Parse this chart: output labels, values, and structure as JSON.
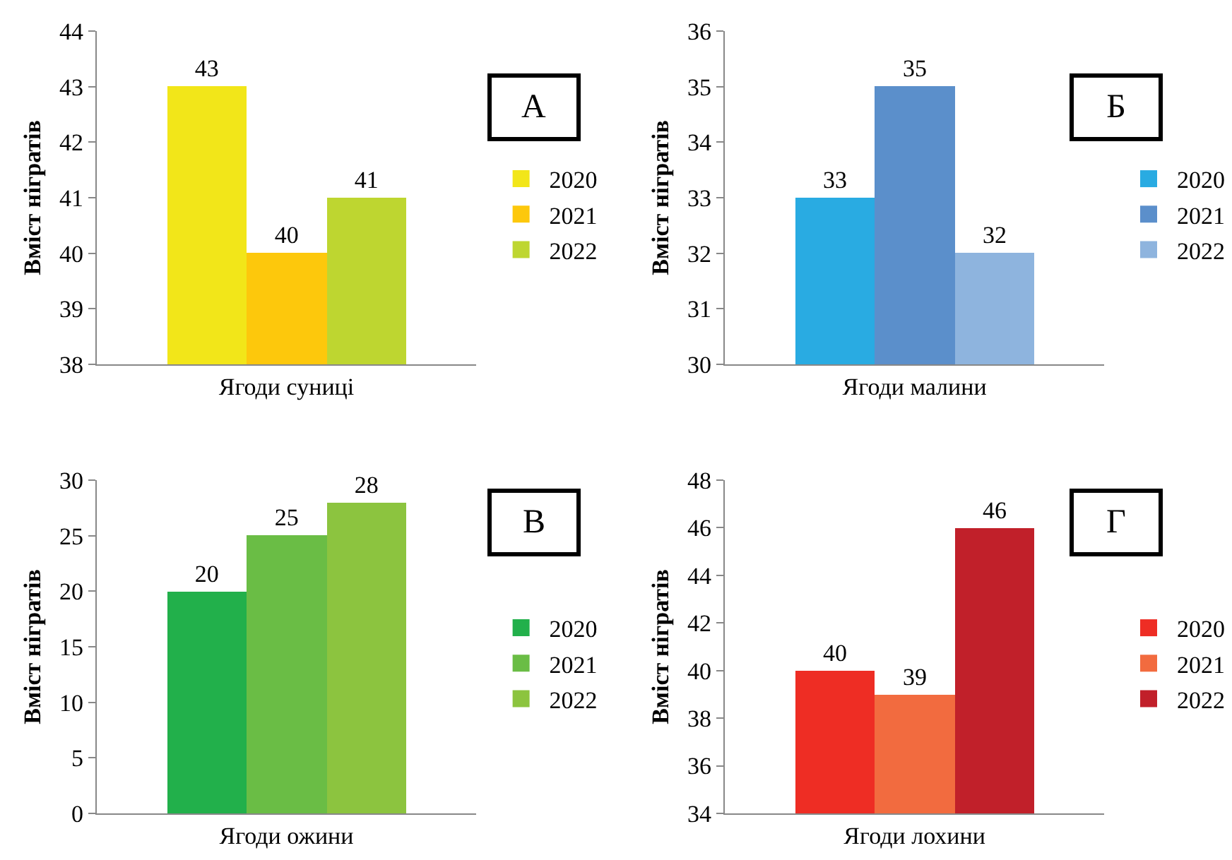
{
  "chart_data": [
    {
      "type": "bar",
      "categories": [
        null,
        "Ягоди суниці",
        null
      ],
      "ylabel": "Вміст нігратів",
      "ylim": [
        38,
        44
      ],
      "yticks": [
        38,
        39,
        40,
        41,
        42,
        43,
        44
      ],
      "data_labels": true,
      "legend": "right",
      "grid": false,
      "annotations": [
        "А"
      ],
      "series": [
        {
          "name": "2020",
          "color": "#f2e619",
          "values": [
            43,
            null,
            null
          ]
        },
        {
          "name": "2021",
          "color": "#fdc80c",
          "values": [
            null,
            40,
            null
          ]
        },
        {
          "name": "2022",
          "color": "#bed630",
          "values": [
            null,
            null,
            41
          ]
        }
      ]
    },
    {
      "type": "bar",
      "categories": [
        null,
        "Ягоди малини",
        null
      ],
      "ylabel": "Вміст нігратів",
      "ylim": [
        30,
        36
      ],
      "yticks": [
        30,
        31,
        32,
        33,
        34,
        35,
        36
      ],
      "data_labels": true,
      "legend": "right",
      "grid": false,
      "annotations": [
        "Б"
      ],
      "series": [
        {
          "name": "2020",
          "color": "#29abe2",
          "values": [
            33,
            null,
            null
          ]
        },
        {
          "name": "2021",
          "color": "#5b8fcb",
          "values": [
            null,
            35,
            null
          ]
        },
        {
          "name": "2022",
          "color": "#8eb4de",
          "values": [
            null,
            null,
            32
          ]
        }
      ]
    },
    {
      "type": "bar",
      "categories": [
        null,
        "Ягоди ожини",
        null
      ],
      "ylabel": "Вміст нігратів",
      "ylim": [
        0,
        30
      ],
      "yticks": [
        0,
        5,
        10,
        15,
        20,
        25,
        30
      ],
      "data_labels": true,
      "legend": "right",
      "grid": false,
      "annotations": [
        "В"
      ],
      "series": [
        {
          "name": "2020",
          "color": "#22b04b",
          "values": [
            20,
            null,
            null
          ]
        },
        {
          "name": "2021",
          "color": "#6abd45",
          "values": [
            null,
            25,
            null
          ]
        },
        {
          "name": "2022",
          "color": "#8cc43f",
          "values": [
            null,
            null,
            28
          ]
        }
      ]
    },
    {
      "type": "bar",
      "categories": [
        null,
        "Ягоди лохини",
        null
      ],
      "ylabel": "Вміст нігратів",
      "ylim": [
        34,
        48
      ],
      "yticks": [
        34,
        36,
        38,
        40,
        42,
        44,
        46,
        48
      ],
      "data_labels": true,
      "legend": "right",
      "grid": false,
      "annotations": [
        "Г"
      ],
      "series": [
        {
          "name": "2020",
          "color": "#ee2d24",
          "values": [
            40,
            null,
            null
          ]
        },
        {
          "name": "2021",
          "color": "#f26b3f",
          "values": [
            null,
            39,
            null
          ]
        },
        {
          "name": "2022",
          "color": "#c1202a",
          "values": [
            null,
            null,
            46
          ]
        }
      ]
    }
  ]
}
